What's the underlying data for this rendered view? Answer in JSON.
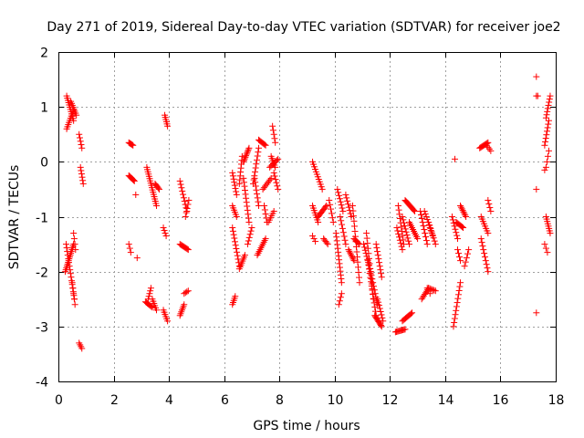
{
  "chart_data": {
    "type": "scatter",
    "title": "Day 271 of 2019, Sidereal Day-to-day VTEC variation (SDTVAR) for receiver joe2",
    "xlabel": "GPS time / hours",
    "ylabel": "SDTVAR / TECUs",
    "xlim": [
      0,
      18
    ],
    "ylim": [
      -4,
      2
    ],
    "xticks": [
      0,
      2,
      4,
      6,
      8,
      10,
      12,
      14,
      16,
      18
    ],
    "yticks": [
      -4,
      -3,
      -2,
      -1,
      0,
      1,
      2
    ],
    "xtick_labels": [
      "0",
      "2",
      "4",
      "6",
      "8",
      "10",
      "12",
      "14",
      "16",
      "18"
    ],
    "ytick_labels": [
      "-4",
      "-3",
      "-2",
      "-1",
      "0",
      "1",
      "2"
    ],
    "grid": true,
    "marker": "+",
    "color": "#ff0000",
    "series": [
      {
        "name": "joe2",
        "segments": [
          [
            0.3,
            1.2,
            0.55,
            0.75,
            12
          ],
          [
            0.3,
            0.6,
            0.55,
            0.95,
            10
          ],
          [
            0.45,
            1.1,
            0.65,
            0.85,
            8
          ],
          [
            0.25,
            -2.0,
            0.55,
            -1.5,
            16
          ],
          [
            0.28,
            -1.5,
            0.58,
            -2.5,
            16
          ],
          [
            0.5,
            -2.2,
            0.6,
            -2.6,
            5
          ],
          [
            0.55,
            -1.3,
            0.62,
            -1.6,
            4
          ],
          [
            0.75,
            -3.3,
            0.85,
            -3.4,
            4
          ],
          [
            0.75,
            0.5,
            0.85,
            0.25,
            5
          ],
          [
            0.8,
            -0.1,
            0.9,
            -0.4,
            6
          ],
          [
            2.55,
            0.35,
            2.7,
            0.3,
            6
          ],
          [
            2.55,
            -0.25,
            2.75,
            -0.35,
            8
          ],
          [
            2.55,
            -1.5,
            2.62,
            -1.65,
            3
          ],
          [
            2.85,
            -1.75,
            2.85,
            -1.75,
            1
          ],
          [
            2.8,
            -0.6,
            2.8,
            -0.6,
            1
          ],
          [
            3.2,
            -0.1,
            3.55,
            -0.8,
            18
          ],
          [
            3.25,
            -2.5,
            3.35,
            -2.3,
            5
          ],
          [
            3.15,
            -2.55,
            3.4,
            -2.65,
            8
          ],
          [
            3.4,
            -2.5,
            3.55,
            -2.7,
            6
          ],
          [
            3.5,
            -0.4,
            3.65,
            -0.5,
            6
          ],
          [
            3.8,
            -2.7,
            3.95,
            -2.9,
            6
          ],
          [
            3.85,
            0.85,
            3.95,
            0.65,
            6
          ],
          [
            3.8,
            -1.2,
            3.9,
            -1.35,
            4
          ],
          [
            4.4,
            -2.8,
            4.55,
            -2.6,
            7
          ],
          [
            4.55,
            -2.4,
            4.7,
            -2.35,
            4
          ],
          [
            4.4,
            -1.5,
            4.7,
            -1.6,
            10
          ],
          [
            4.4,
            -0.35,
            4.65,
            -0.9,
            10
          ],
          [
            4.6,
            -1.0,
            4.72,
            -0.7,
            5
          ],
          [
            6.3,
            -2.6,
            6.4,
            -2.45,
            5
          ],
          [
            6.3,
            -1.2,
            6.55,
            -1.9,
            12
          ],
          [
            6.3,
            -0.2,
            6.45,
            -0.6,
            8
          ],
          [
            6.3,
            -0.8,
            6.45,
            -1.0,
            6
          ],
          [
            6.55,
            -1.95,
            6.75,
            -1.7,
            8
          ],
          [
            6.55,
            -0.4,
            6.65,
            0.1,
            8
          ],
          [
            6.7,
            0.0,
            6.9,
            0.25,
            10
          ],
          [
            6.7,
            -0.3,
            6.9,
            -1.1,
            12
          ],
          [
            6.85,
            -1.5,
            7.0,
            -1.2,
            6
          ],
          [
            7.05,
            -0.4,
            7.25,
            0.25,
            10
          ],
          [
            7.1,
            -0.3,
            7.25,
            -0.8,
            8
          ],
          [
            7.2,
            -1.7,
            7.5,
            -1.4,
            10
          ],
          [
            7.25,
            0.4,
            7.5,
            0.3,
            8
          ],
          [
            7.4,
            -0.5,
            7.7,
            -0.3,
            8
          ],
          [
            7.45,
            -0.8,
            7.55,
            -1.1,
            5
          ],
          [
            7.6,
            -1.1,
            7.8,
            -0.9,
            6
          ],
          [
            7.7,
            0.1,
            7.85,
            -0.1,
            6
          ],
          [
            7.75,
            0.65,
            7.85,
            0.35,
            5
          ],
          [
            7.8,
            -0.2,
            7.95,
            -0.5,
            6
          ],
          [
            7.65,
            -0.1,
            7.95,
            0.05,
            8
          ],
          [
            9.2,
            0.0,
            9.55,
            -0.5,
            12
          ],
          [
            9.2,
            -0.8,
            9.4,
            -1.1,
            8
          ],
          [
            9.2,
            -1.35,
            9.3,
            -1.45,
            3
          ],
          [
            9.4,
            -1.0,
            9.7,
            -0.8,
            10
          ],
          [
            9.6,
            -1.4,
            9.75,
            -1.5,
            5
          ],
          [
            9.8,
            -0.7,
            9.95,
            -1.1,
            6
          ],
          [
            10.1,
            -0.5,
            10.3,
            -0.9,
            8
          ],
          [
            10.05,
            -1.3,
            10.25,
            -2.2,
            14
          ],
          [
            10.2,
            -1.0,
            10.4,
            -1.5,
            8
          ],
          [
            10.15,
            -2.6,
            10.25,
            -2.4,
            4
          ],
          [
            10.4,
            -0.6,
            10.6,
            -1.0,
            8
          ],
          [
            10.5,
            -1.6,
            10.7,
            -1.8,
            8
          ],
          [
            10.65,
            -0.8,
            10.9,
            -2.2,
            16
          ],
          [
            10.7,
            -1.4,
            10.9,
            -1.5,
            6
          ],
          [
            11.05,
            -1.5,
            11.3,
            -2.0,
            10
          ],
          [
            11.15,
            -1.3,
            11.4,
            -2.5,
            14
          ],
          [
            11.2,
            -1.8,
            11.5,
            -2.8,
            14
          ],
          [
            11.3,
            -2.0,
            11.55,
            -2.6,
            10
          ],
          [
            11.45,
            -2.8,
            11.7,
            -3.0,
            10
          ],
          [
            11.5,
            -1.5,
            11.7,
            -2.1,
            10
          ],
          [
            11.55,
            -2.5,
            11.75,
            -2.9,
            8
          ],
          [
            12.2,
            -3.1,
            12.55,
            -3.05,
            10
          ],
          [
            12.45,
            -2.9,
            12.8,
            -2.75,
            10
          ],
          [
            12.25,
            -1.2,
            12.45,
            -1.6,
            8
          ],
          [
            12.3,
            -0.8,
            12.5,
            -1.5,
            10
          ],
          [
            12.45,
            -1.0,
            12.7,
            -1.5,
            10
          ],
          [
            12.55,
            -0.7,
            12.9,
            -0.9,
            12
          ],
          [
            12.7,
            -1.1,
            13.0,
            -1.4,
            10
          ],
          [
            13.1,
            -0.9,
            13.35,
            -1.5,
            10
          ],
          [
            13.25,
            -0.9,
            13.55,
            -1.35,
            10
          ],
          [
            13.4,
            -1.1,
            13.65,
            -1.5,
            8
          ],
          [
            13.15,
            -2.5,
            13.4,
            -2.3,
            8
          ],
          [
            13.4,
            -2.3,
            13.65,
            -2.35,
            6
          ],
          [
            13.35,
            -2.3,
            13.45,
            -2.4,
            3
          ],
          [
            14.3,
            -3.0,
            14.55,
            -2.2,
            12
          ],
          [
            14.35,
            0.05,
            14.35,
            0.05,
            1
          ],
          [
            14.25,
            -1.0,
            14.45,
            -1.4,
            8
          ],
          [
            14.4,
            -1.1,
            14.65,
            -1.2,
            8
          ],
          [
            14.45,
            -1.6,
            14.55,
            -1.8,
            4
          ],
          [
            14.55,
            -0.8,
            14.75,
            -1.0,
            8
          ],
          [
            14.7,
            -1.9,
            14.85,
            -1.6,
            5
          ],
          [
            15.25,
            0.25,
            15.55,
            0.35,
            10
          ],
          [
            15.3,
            -1.0,
            15.55,
            -1.3,
            8
          ],
          [
            15.3,
            -1.4,
            15.55,
            -2.0,
            10
          ],
          [
            15.55,
            -0.7,
            15.65,
            -0.9,
            4
          ],
          [
            15.5,
            0.3,
            15.65,
            0.2,
            4
          ],
          [
            17.3,
            1.55,
            17.3,
            1.55,
            1
          ],
          [
            17.3,
            1.2,
            17.35,
            1.2,
            2
          ],
          [
            17.3,
            -0.5,
            17.3,
            -0.5,
            1
          ],
          [
            17.3,
            -2.75,
            17.3,
            -2.75,
            1
          ],
          [
            17.6,
            0.3,
            17.75,
            0.75,
            8
          ],
          [
            17.65,
            0.8,
            17.8,
            1.2,
            8
          ],
          [
            17.65,
            -0.1,
            17.75,
            0.2,
            4
          ],
          [
            17.65,
            -1.0,
            17.8,
            -1.3,
            8
          ],
          [
            17.6,
            -1.5,
            17.7,
            -1.65,
            3
          ],
          [
            17.6,
            -0.15,
            17.6,
            -0.15,
            1
          ]
        ]
      }
    ]
  }
}
